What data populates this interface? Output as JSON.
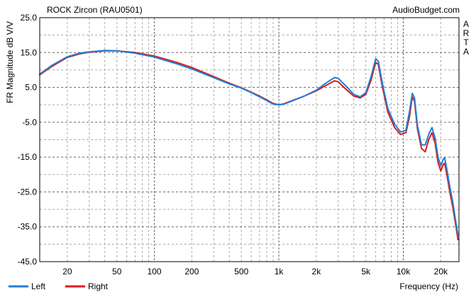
{
  "chart_data": {
    "type": "line",
    "title": "ROCK Zircon (RAU0501)",
    "watermark": "AudioBudget.com",
    "side_label": "ARTA",
    "xlabel": "Frequency (Hz)",
    "ylabel": "FR Magnitude dB V/V",
    "x_scale": "log",
    "xlim": [
      12,
      28000
    ],
    "ylim": [
      -45,
      25
    ],
    "x_ticks": [
      {
        "value": 20,
        "label": "20"
      },
      {
        "value": 50,
        "label": "50"
      },
      {
        "value": 100,
        "label": "100"
      },
      {
        "value": 200,
        "label": "200"
      },
      {
        "value": 500,
        "label": "500"
      },
      {
        "value": 1000,
        "label": "1k"
      },
      {
        "value": 2000,
        "label": "2k"
      },
      {
        "value": 5000,
        "label": "5k"
      },
      {
        "value": 10000,
        "label": "10k"
      },
      {
        "value": 20000,
        "label": "20k"
      }
    ],
    "y_ticks": [
      {
        "value": 25,
        "label": "25.0"
      },
      {
        "value": 15,
        "label": "15.0"
      },
      {
        "value": 5,
        "label": "5.0"
      },
      {
        "value": -5,
        "label": "-5.0"
      },
      {
        "value": -15,
        "label": "-15.0"
      },
      {
        "value": -25,
        "label": "-25.0"
      },
      {
        "value": -35,
        "label": "-35.0"
      },
      {
        "value": -45,
        "label": "-45.0"
      }
    ],
    "grid": true,
    "legend_position": "bottom-left",
    "series": [
      {
        "name": "Left",
        "color": "#1f7fd6",
        "points": [
          [
            12,
            8.8
          ],
          [
            15,
            11.3
          ],
          [
            20,
            13.8
          ],
          [
            25,
            14.8
          ],
          [
            30,
            15.2
          ],
          [
            40,
            15.6
          ],
          [
            50,
            15.5
          ],
          [
            70,
            14.8
          ],
          [
            100,
            13.7
          ],
          [
            150,
            11.8
          ],
          [
            200,
            10.3
          ],
          [
            300,
            7.8
          ],
          [
            400,
            6.0
          ],
          [
            500,
            4.8
          ],
          [
            600,
            3.5
          ],
          [
            700,
            2.3
          ],
          [
            800,
            1.2
          ],
          [
            900,
            0.2
          ],
          [
            1000,
            0.0
          ],
          [
            1100,
            0.2
          ],
          [
            1300,
            1.2
          ],
          [
            1600,
            2.5
          ],
          [
            2000,
            4.2
          ],
          [
            2400,
            6.3
          ],
          [
            2800,
            7.8
          ],
          [
            3000,
            7.6
          ],
          [
            3500,
            5.2
          ],
          [
            4000,
            3.0
          ],
          [
            4500,
            2.3
          ],
          [
            5000,
            3.5
          ],
          [
            5500,
            8.0
          ],
          [
            6000,
            13.2
          ],
          [
            6300,
            12.5
          ],
          [
            6800,
            6.0
          ],
          [
            7500,
            -1.0
          ],
          [
            8500,
            -5.5
          ],
          [
            9500,
            -7.8
          ],
          [
            10500,
            -7.3
          ],
          [
            11200,
            -2.0
          ],
          [
            11800,
            3.3
          ],
          [
            12300,
            2.0
          ],
          [
            13000,
            -6.0
          ],
          [
            14000,
            -11.5
          ],
          [
            15000,
            -11.5
          ],
          [
            16000,
            -8.5
          ],
          [
            17000,
            -6.5
          ],
          [
            18000,
            -9.5
          ],
          [
            19000,
            -15.0
          ],
          [
            20000,
            -17.5
          ],
          [
            21000,
            -15.5
          ],
          [
            21500,
            -15.2
          ],
          [
            22500,
            -19.0
          ],
          [
            23500,
            -23.0
          ],
          [
            25000,
            -28.0
          ],
          [
            26500,
            -34.0
          ],
          [
            27500,
            -37.5
          ]
        ]
      },
      {
        "name": "Right",
        "color": "#dd1a1a",
        "points": [
          [
            12,
            8.6
          ],
          [
            15,
            11.0
          ],
          [
            20,
            13.6
          ],
          [
            25,
            14.6
          ],
          [
            30,
            15.1
          ],
          [
            40,
            15.5
          ],
          [
            50,
            15.5
          ],
          [
            70,
            15.0
          ],
          [
            100,
            14.0
          ],
          [
            150,
            12.2
          ],
          [
            200,
            10.7
          ],
          [
            300,
            8.1
          ],
          [
            400,
            6.2
          ],
          [
            500,
            4.9
          ],
          [
            600,
            3.6
          ],
          [
            700,
            2.5
          ],
          [
            800,
            1.4
          ],
          [
            900,
            0.4
          ],
          [
            1000,
            0.0
          ],
          [
            1100,
            0.3
          ],
          [
            1300,
            1.3
          ],
          [
            1600,
            2.5
          ],
          [
            2000,
            4.0
          ],
          [
            2400,
            5.6
          ],
          [
            2800,
            6.9
          ],
          [
            3000,
            6.6
          ],
          [
            3500,
            4.3
          ],
          [
            4000,
            2.5
          ],
          [
            4500,
            2.0
          ],
          [
            5000,
            3.0
          ],
          [
            5500,
            7.0
          ],
          [
            6000,
            12.2
          ],
          [
            6300,
            11.6
          ],
          [
            6800,
            5.0
          ],
          [
            7500,
            -2.0
          ],
          [
            8500,
            -6.5
          ],
          [
            9500,
            -8.5
          ],
          [
            10500,
            -8.0
          ],
          [
            11200,
            -3.5
          ],
          [
            11800,
            2.3
          ],
          [
            12300,
            1.0
          ],
          [
            13000,
            -7.0
          ],
          [
            14000,
            -12.5
          ],
          [
            15000,
            -13.5
          ],
          [
            16000,
            -10.0
          ],
          [
            17000,
            -8.0
          ],
          [
            18000,
            -11.0
          ],
          [
            19000,
            -16.5
          ],
          [
            20000,
            -19.0
          ],
          [
            21000,
            -17.0
          ],
          [
            21500,
            -16.8
          ],
          [
            22500,
            -20.5
          ],
          [
            23500,
            -24.5
          ],
          [
            25000,
            -29.5
          ],
          [
            26500,
            -35.0
          ],
          [
            27500,
            -38.7
          ]
        ]
      }
    ]
  }
}
